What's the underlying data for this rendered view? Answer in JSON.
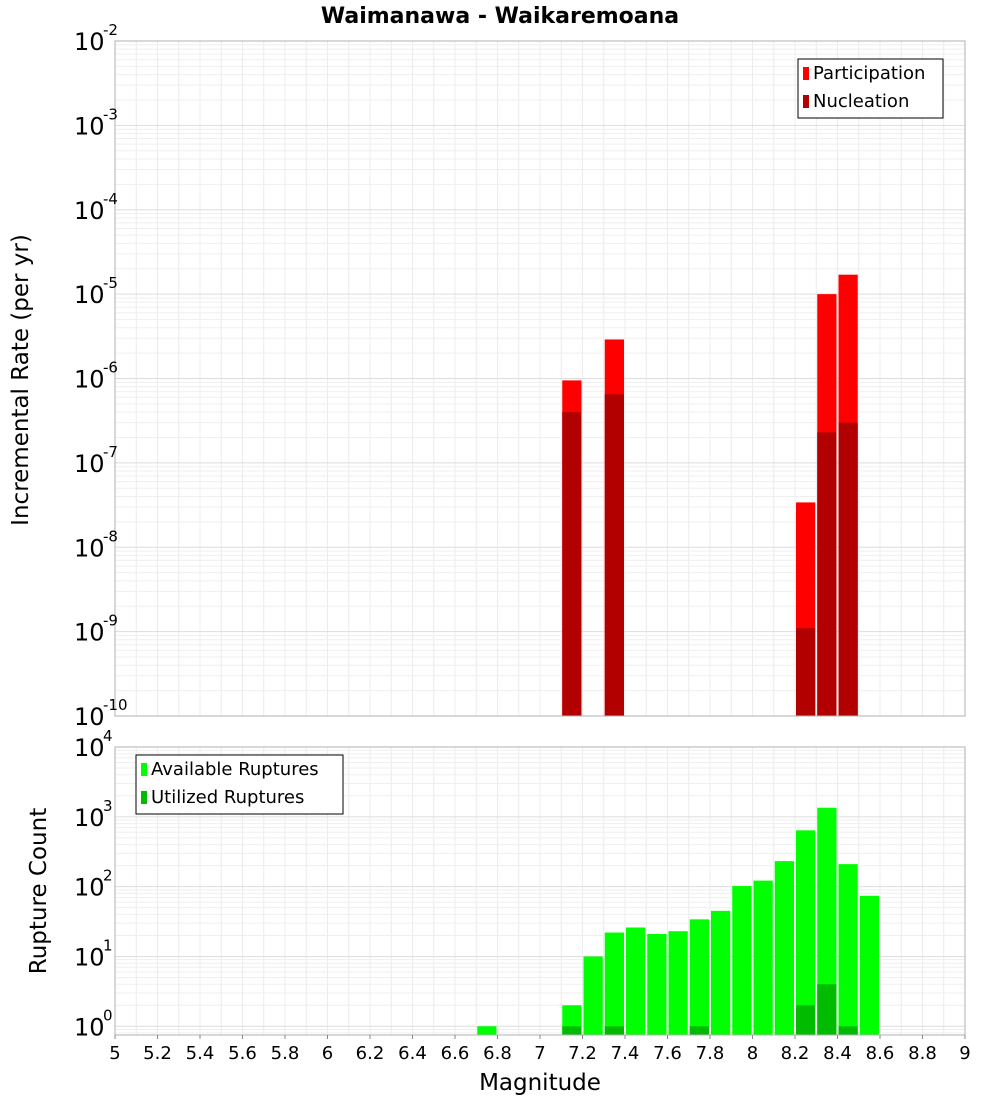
{
  "title": "Waimanawa - Waikaremoana",
  "chart_data": [
    {
      "type": "bar",
      "name": "rate-panel",
      "ylabel": "Incremental Rate (per yr)",
      "yscale": "log",
      "ylim": [
        1e-10,
        0.01
      ],
      "xlim": [
        5,
        9
      ],
      "bin_width": 0.1,
      "grid": true,
      "legend_position": "top-right",
      "y_ticks": [
        {
          "base": "10",
          "exp": "-2",
          "value": 0.01
        },
        {
          "base": "10",
          "exp": "-3",
          "value": 0.001
        },
        {
          "base": "10",
          "exp": "-4",
          "value": 0.0001
        },
        {
          "base": "10",
          "exp": "-5",
          "value": 1e-05
        },
        {
          "base": "10",
          "exp": "-6",
          "value": 1e-06
        },
        {
          "base": "10",
          "exp": "-7",
          "value": 1e-07
        },
        {
          "base": "10",
          "exp": "-8",
          "value": 1e-08
        },
        {
          "base": "10",
          "exp": "-9",
          "value": 1e-09
        },
        {
          "base": "10",
          "exp": "-10",
          "value": 1e-10
        }
      ],
      "series": [
        {
          "name": "Participation",
          "color": "#ff0000",
          "x": [
            7.15,
            7.35,
            8.25,
            8.35,
            8.45
          ],
          "values": [
            9.5e-07,
            2.9e-06,
            3.4e-08,
            1e-05,
            1.7e-05
          ]
        },
        {
          "name": "Nucleation",
          "color": "#b20000",
          "x": [
            7.15,
            7.35,
            8.25,
            8.35,
            8.45
          ],
          "values": [
            4e-07,
            6.5e-07,
            1.1e-09,
            2.3e-07,
            3e-07
          ]
        }
      ]
    },
    {
      "type": "bar",
      "name": "count-panel",
      "xlabel": "Magnitude",
      "ylabel": "Rupture Count",
      "yscale": "log",
      "ylim": [
        0.75,
        10000
      ],
      "xlim": [
        5,
        9
      ],
      "bin_width": 0.1,
      "grid": true,
      "legend_position": "top-left",
      "x_ticks": [
        "5",
        "5.2",
        "5.4",
        "5.6",
        "5.8",
        "6",
        "6.2",
        "6.4",
        "6.6",
        "6.8",
        "7",
        "7.2",
        "7.4",
        "7.6",
        "7.8",
        "8",
        "8.2",
        "8.4",
        "8.6",
        "8.8",
        "9"
      ],
      "y_ticks": [
        {
          "base": "10",
          "exp": "4",
          "value": 10000
        },
        {
          "base": "10",
          "exp": "3",
          "value": 1000
        },
        {
          "base": "10",
          "exp": "2",
          "value": 100
        },
        {
          "base": "10",
          "exp": "1",
          "value": 10
        },
        {
          "base": "10",
          "exp": "0",
          "value": 1
        }
      ],
      "series": [
        {
          "name": "Available Ruptures",
          "color": "#00ff00",
          "x": [
            6.75,
            7.15,
            7.25,
            7.35,
            7.45,
            7.55,
            7.65,
            7.75,
            7.85,
            7.95,
            8.05,
            8.15,
            8.25,
            8.35,
            8.45,
            8.55
          ],
          "values": [
            1,
            2,
            10,
            22,
            26,
            21,
            23,
            34,
            45,
            102,
            122,
            232,
            640,
            1350,
            210,
            74
          ]
        },
        {
          "name": "Utilized Ruptures",
          "color": "#00bb00",
          "x": [
            7.15,
            7.35,
            7.75,
            8.25,
            8.35,
            8.45
          ],
          "values": [
            1,
            1,
            1,
            2,
            4,
            1
          ]
        }
      ]
    }
  ]
}
